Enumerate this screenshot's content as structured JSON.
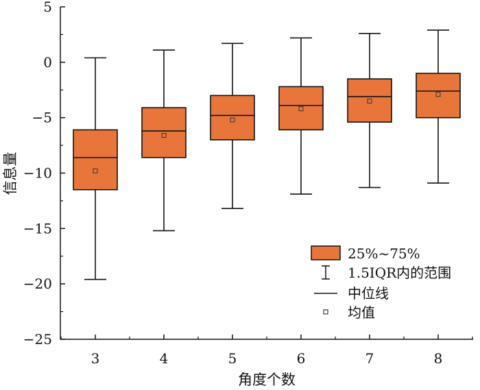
{
  "chart_data": {
    "type": "box",
    "xlabel": "角度个数",
    "ylabel": "信息量",
    "ylim": [
      -25,
      5
    ],
    "yticks": [
      {
        "value": 5,
        "label": "5"
      },
      {
        "value": 0,
        "label": "0"
      },
      {
        "value": -5,
        "label": "−5"
      },
      {
        "value": -10,
        "label": "−10"
      },
      {
        "value": -15,
        "label": "−15"
      },
      {
        "value": -20,
        "label": "−20"
      },
      {
        "value": -25,
        "label": "−25"
      }
    ],
    "categories": [
      "3",
      "4",
      "5",
      "6",
      "7",
      "8"
    ],
    "boxes": [
      {
        "category": "3",
        "whisker_low": -19.6,
        "q1": -11.5,
        "median": -8.6,
        "q3": -6.1,
        "whisker_high": 0.4,
        "mean": -9.8
      },
      {
        "category": "4",
        "whisker_low": -15.2,
        "q1": -8.6,
        "median": -6.2,
        "q3": -4.1,
        "whisker_high": 1.1,
        "mean": -6.6
      },
      {
        "category": "5",
        "whisker_low": -13.2,
        "q1": -7.0,
        "median": -4.8,
        "q3": -3.0,
        "whisker_high": 1.7,
        "mean": -5.2
      },
      {
        "category": "6",
        "whisker_low": -11.9,
        "q1": -6.1,
        "median": -3.9,
        "q3": -2.2,
        "whisker_high": 2.2,
        "mean": -4.2
      },
      {
        "category": "7",
        "whisker_low": -11.3,
        "q1": -5.4,
        "median": -3.1,
        "q3": -1.5,
        "whisker_high": 2.6,
        "mean": -3.5
      },
      {
        "category": "8",
        "whisker_low": -10.9,
        "q1": -5.0,
        "median": -2.6,
        "q3": -1.0,
        "whisker_high": 2.9,
        "mean": -2.9
      }
    ],
    "box_color": "#E8763A",
    "legend": {
      "placement": "bottom-right",
      "entries": [
        {
          "kind": "box",
          "label": "25%~75%"
        },
        {
          "kind": "whisker",
          "label": "1.5IQR内的范围"
        },
        {
          "kind": "median",
          "label": "中位线"
        },
        {
          "kind": "mean",
          "label": "均值"
        }
      ]
    },
    "grid": false
  }
}
